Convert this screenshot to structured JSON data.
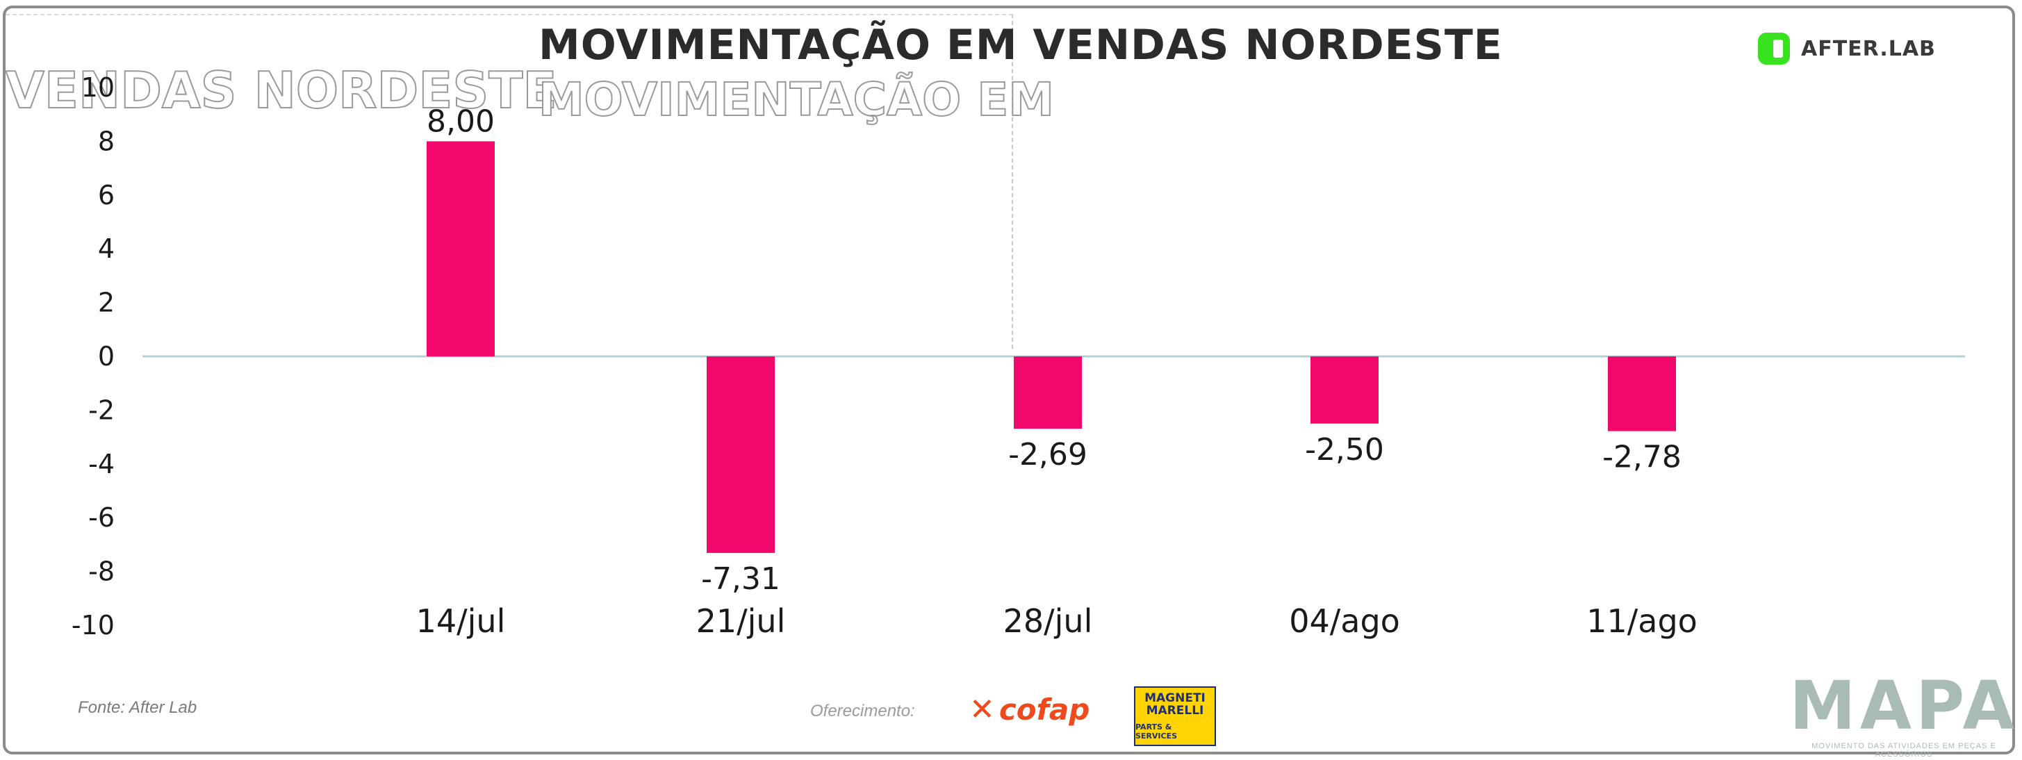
{
  "header": {
    "title": "MOVIMENTAÇÃO EM VENDAS NORDESTE",
    "ghost_left": "VENDAS NORDESTE",
    "ghost_mid": "MOVIMENTAÇÃO EM",
    "logo_text": "AFTER.LAB"
  },
  "footer": {
    "source": "Fonte: After Lab",
    "sponsor_label": "Oferecimento:",
    "cofap": "cofap",
    "magneti_line1": "MAGNETI",
    "magneti_line2": "MARELLI",
    "magneti_line3": "PARTS & SERVICES",
    "mapa": "MAPA",
    "mapa_tagline": "MOVIMENTO DAS ATIVIDADES EM PEÇAS E ACESSÓRIOS"
  },
  "colors": {
    "bar": "#f2076a",
    "zero_line": "#b9cfd6",
    "logo_green": "#39e21f"
  },
  "chart_data": {
    "type": "bar",
    "title": "MOVIMENTAÇÃO EM VENDAS NORDESTE",
    "categories": [
      "14/jul",
      "21/jul",
      "28/jul",
      "04/ago",
      "11/ago"
    ],
    "values": [
      8.0,
      -7.31,
      -2.69,
      -2.5,
      -2.78
    ],
    "value_labels": [
      "8,00",
      "-7,31",
      "-2,69",
      "-2,50",
      "-2,78"
    ],
    "y_ticks": [
      10,
      8,
      6,
      4,
      2,
      0,
      -2,
      -4,
      -6,
      -8,
      -10
    ],
    "ylim": [
      -10,
      10
    ],
    "xlabel": "",
    "ylabel": "",
    "grid": false,
    "legend": "none"
  }
}
